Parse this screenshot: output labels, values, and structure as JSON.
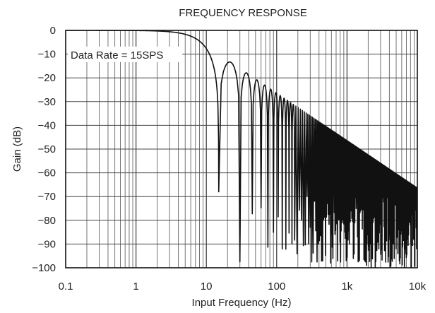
{
  "chart_data": {
    "type": "line",
    "title": "FREQUENCY RESPONSE",
    "xlabel": "Input Frequency (Hz)",
    "ylabel": "Gain (dB)",
    "x_scale": "log",
    "xlim": [
      0.1,
      10000
    ],
    "ylim": [
      -100,
      0
    ],
    "x_ticks": [
      {
        "value": 0.1,
        "label": "0.1"
      },
      {
        "value": 1,
        "label": "1"
      },
      {
        "value": 10,
        "label": "10"
      },
      {
        "value": 100,
        "label": "100"
      },
      {
        "value": 1000,
        "label": "1k"
      },
      {
        "value": 10000,
        "label": "10k"
      }
    ],
    "y_ticks": [
      {
        "value": 0,
        "label": "0"
      },
      {
        "value": -10,
        "label": "−10"
      },
      {
        "value": -20,
        "label": "−20"
      },
      {
        "value": -30,
        "label": "−30"
      },
      {
        "value": -40,
        "label": "−40"
      },
      {
        "value": -50,
        "label": "−50"
      },
      {
        "value": -60,
        "label": "−60"
      },
      {
        "value": -70,
        "label": "−70"
      },
      {
        "value": -80,
        "label": "−80"
      },
      {
        "value": -90,
        "label": "−90"
      },
      {
        "value": -100,
        "label": "−100"
      }
    ],
    "grid": true,
    "annotation": "Data Rate = 15SPS",
    "series": [
      {
        "response": "|sinc(f/15)|",
        "notch_spacing_hz": 15,
        "peak_envelope_db_at_10khz": -65,
        "color": "#111111"
      }
    ]
  }
}
